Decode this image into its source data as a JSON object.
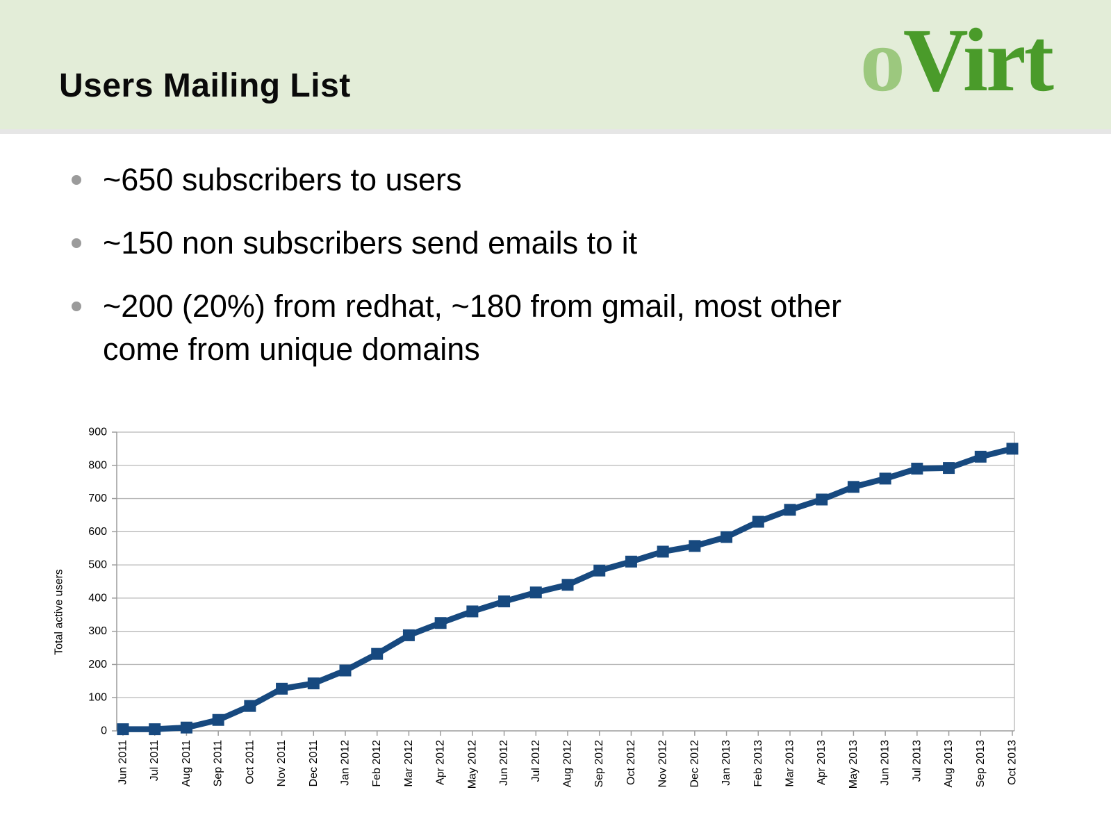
{
  "slide": {
    "title": "Users Mailing List",
    "logo": {
      "prefix": "o",
      "suffix": "Virt"
    },
    "bullets": [
      [
        "~650 subscribers to users"
      ],
      [
        "~150 non subscribers send emails to it"
      ],
      [
        "~200 (20%) from redhat, ~180 from gmail, most other",
        "come from unique domains"
      ]
    ]
  },
  "colors": {
    "header_bg": "#e3edd8",
    "divider": "#e6e6e6",
    "logo_o": "#9cc87e",
    "logo_virt": "#4a9b2a",
    "series_line": "#17497f",
    "grid_line": "#b7b7b7",
    "axis_line": "#9c9c9c",
    "bullet_dot": "#9b9b9b",
    "text": "#000000"
  },
  "chart_data": {
    "type": "line",
    "title": "",
    "xlabel": "",
    "ylabel": "Total active users",
    "ylim": [
      0,
      900
    ],
    "ytick_step": 100,
    "grid": true,
    "legend": "none",
    "marker": "square",
    "categories": [
      "Jun 2011",
      "Jul 2011",
      "Aug 2011",
      "Sep 2011",
      "Oct 2011",
      "Nov 2011",
      "Dec 2011",
      "Jan 2012",
      "Feb 2012",
      "Mar 2012",
      "Apr 2012",
      "May 2012",
      "Jun 2012",
      "Jul 2012",
      "Aug 2012",
      "Sep 2012",
      "Oct 2012",
      "Nov 2012",
      "Dec 2012",
      "Jan 2013",
      "Feb 2013",
      "Mar 2013",
      "Apr 2013",
      "May 2013",
      "Jun 2013",
      "Jul 2013",
      "Aug 2013",
      "Sep 2013",
      "Oct 2013"
    ],
    "series": [
      {
        "name": "Total active users",
        "values": [
          5,
          5,
          10,
          33,
          75,
          127,
          143,
          182,
          232,
          288,
          325,
          360,
          390,
          417,
          440,
          483,
          510,
          540,
          557,
          584,
          630,
          666,
          697,
          735,
          760,
          790,
          792,
          826,
          850
        ]
      }
    ]
  }
}
